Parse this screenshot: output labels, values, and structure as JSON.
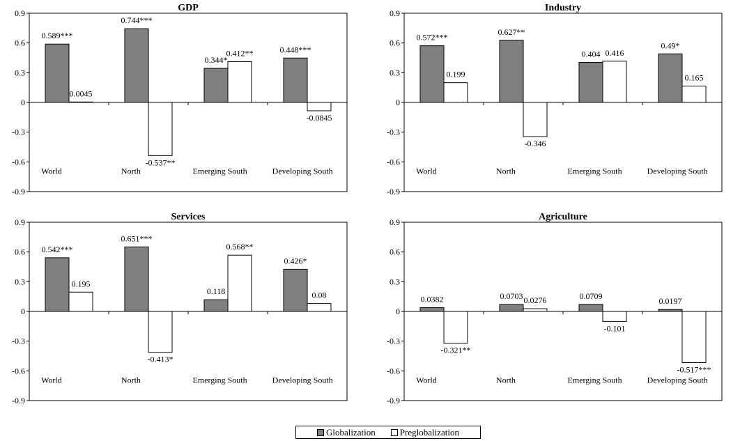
{
  "legend": {
    "globalization": "Globalization",
    "preglobalization": "Preglobalization"
  },
  "colors": {
    "globalization": "#808080",
    "preglobalization": "#ffffff",
    "stroke": "#000000"
  },
  "chart_data": [
    {
      "type": "bar",
      "title": "GDP",
      "categories": [
        "World",
        "North",
        "Emerging South",
        "Developing South"
      ],
      "ylim": [
        -0.9,
        0.9
      ],
      "yticks": [
        "0.9",
        "0.6",
        "0.3",
        "0",
        "-0.3",
        "-0.6",
        "-0.9"
      ],
      "series": [
        {
          "name": "Globalization",
          "values": [
            0.589,
            0.744,
            0.344,
            0.448
          ],
          "labels": [
            "0.589***",
            "0.744***",
            "0.344*",
            "0.448***"
          ]
        },
        {
          "name": "Preglobalization",
          "values": [
            0.0045,
            -0.537,
            0.412,
            -0.0845
          ],
          "labels": [
            "0.0045",
            "-0.537**",
            "0.412**",
            "-0.0845"
          ]
        }
      ]
    },
    {
      "type": "bar",
      "title": "Industry",
      "categories": [
        "World",
        "North",
        "Emerging South",
        "Developing South"
      ],
      "ylim": [
        -0.9,
        0.9
      ],
      "yticks": [
        "0.9",
        "0.6",
        "0.3",
        "0",
        "-0.3",
        "-0.6",
        "-0.9"
      ],
      "series": [
        {
          "name": "Globalization",
          "values": [
            0.572,
            0.627,
            0.404,
            0.49
          ],
          "labels": [
            "0.572***",
            "0.627**",
            "0.404",
            "0.49*"
          ]
        },
        {
          "name": "Preglobalization",
          "values": [
            0.199,
            -0.346,
            0.416,
            0.165
          ],
          "labels": [
            "0.199",
            "-0.346",
            "0.416",
            "0.165"
          ]
        }
      ]
    },
    {
      "type": "bar",
      "title": "Services",
      "categories": [
        "World",
        "North",
        "Emerging South",
        "Developing South"
      ],
      "ylim": [
        -0.9,
        0.9
      ],
      "yticks": [
        "0.9",
        "0.6",
        "0.3",
        "0",
        "-0.3",
        "-0.6",
        "-0.9"
      ],
      "series": [
        {
          "name": "Globalization",
          "values": [
            0.542,
            0.651,
            0.118,
            0.426
          ],
          "labels": [
            "0.542***",
            "0.651***",
            "0.118",
            "0.426*"
          ]
        },
        {
          "name": "Preglobalization",
          "values": [
            0.195,
            -0.413,
            0.568,
            0.08
          ],
          "labels": [
            "0.195",
            "-0.413*",
            "0.568**",
            "0.08"
          ]
        }
      ]
    },
    {
      "type": "bar",
      "title": "Agriculture",
      "categories": [
        "World",
        "North",
        "Emerging South",
        "Developing South"
      ],
      "ylim": [
        -0.9,
        0.9
      ],
      "yticks": [
        "0.9",
        "0.6",
        "0.3",
        "0",
        "-0.3",
        "-0.6",
        "-0.9"
      ],
      "series": [
        {
          "name": "Globalization",
          "values": [
            0.0382,
            0.0703,
            0.0709,
            0.0197
          ],
          "labels": [
            "0.0382",
            "0.0703",
            "0.0709",
            "0.0197"
          ]
        },
        {
          "name": "Preglobalization",
          "values": [
            -0.321,
            0.0276,
            -0.101,
            -0.517
          ],
          "labels": [
            "-0.321**",
            "0.0276",
            "-0.101",
            "-0.517***"
          ]
        }
      ]
    }
  ]
}
